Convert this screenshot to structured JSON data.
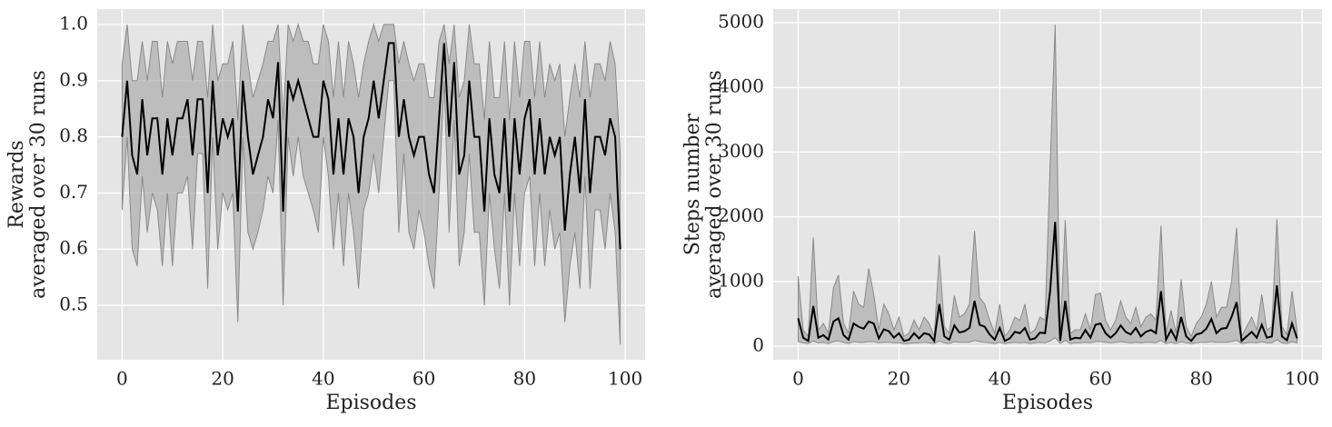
{
  "chart_data": [
    {
      "type": "line",
      "xlabel": "Episodes",
      "ylabel": [
        "Rewards",
        "averaged over 30 runs"
      ],
      "xlim": [
        -4.95,
        103.95
      ],
      "ylim": [
        0.403,
        1.0275
      ],
      "xticks": [
        0,
        20,
        40,
        60,
        80,
        100
      ],
      "yticks": [
        0.5,
        0.6,
        0.7,
        0.8,
        0.9,
        {
          "value": 1,
          "label": "1.0"
        }
      ],
      "grid": true,
      "band_color": "#a8a8a8",
      "x": [
        0,
        1,
        2,
        3,
        4,
        5,
        6,
        7,
        8,
        9,
        10,
        11,
        12,
        13,
        14,
        15,
        16,
        17,
        18,
        19,
        20,
        21,
        22,
        23,
        24,
        25,
        26,
        27,
        28,
        29,
        30,
        31,
        32,
        33,
        34,
        35,
        36,
        37,
        38,
        39,
        40,
        41,
        42,
        43,
        44,
        45,
        46,
        47,
        48,
        49,
        50,
        51,
        52,
        53,
        54,
        55,
        56,
        57,
        58,
        59,
        60,
        61,
        62,
        63,
        64,
        65,
        66,
        67,
        68,
        69,
        70,
        71,
        72,
        73,
        74,
        75,
        76,
        77,
        78,
        79,
        80,
        81,
        82,
        83,
        84,
        85,
        86,
        87,
        88,
        89,
        90,
        91,
        92,
        93,
        94,
        95,
        96,
        97,
        98,
        99
      ],
      "series": [
        {
          "color": "#000000",
          "values": [
            0.8,
            0.9,
            0.767,
            0.733,
            0.867,
            0.767,
            0.833,
            0.833,
            0.733,
            0.833,
            0.767,
            0.833,
            0.833,
            0.867,
            0.767,
            0.867,
            0.867,
            0.7,
            0.9,
            0.767,
            0.833,
            0.8,
            0.833,
            0.667,
            0.9,
            0.8,
            0.733,
            0.767,
            0.8,
            0.867,
            0.833,
            0.933,
            0.667,
            0.9,
            0.867,
            0.9,
            0.867,
            0.833,
            0.8,
            0.8,
            0.9,
            0.867,
            0.733,
            0.833,
            0.733,
            0.833,
            0.8,
            0.7,
            0.8,
            0.833,
            0.9,
            0.833,
            0.9,
            0.967,
            0.967,
            0.8,
            0.867,
            0.8,
            0.767,
            0.8,
            0.8,
            0.733,
            0.7,
            0.833,
            0.967,
            0.8,
            0.933,
            0.733,
            0.767,
            0.9,
            0.8,
            0.8,
            0.667,
            0.833,
            0.733,
            0.7,
            0.833,
            0.667,
            0.833,
            0.733,
            0.833,
            0.867,
            0.733,
            0.833,
            0.733,
            0.8,
            0.767,
            0.8,
            0.633,
            0.733,
            0.8,
            0.7,
            0.867,
            0.7,
            0.8,
            0.8,
            0.767,
            0.833,
            0.8,
            0.6
          ],
          "upper": [
            0.93,
            1.0,
            0.9,
            0.9,
            0.97,
            0.9,
            0.97,
            0.97,
            0.87,
            0.97,
            0.93,
            0.97,
            0.97,
            0.97,
            0.9,
            0.97,
            0.97,
            0.87,
            1.0,
            0.9,
            0.93,
            0.93,
            0.97,
            0.83,
            1.0,
            0.93,
            0.87,
            0.9,
            0.93,
            0.97,
            0.97,
            1.0,
            0.83,
            1.0,
            0.97,
            1.0,
            0.97,
            0.97,
            0.93,
            0.93,
            1.0,
            0.97,
            0.87,
            0.97,
            0.87,
            0.97,
            0.93,
            0.87,
            0.93,
            0.97,
            1.0,
            0.97,
            1.0,
            1.0,
            1.0,
            0.93,
            0.97,
            0.93,
            0.9,
            0.93,
            0.93,
            0.87,
            0.87,
            0.97,
            1.0,
            0.93,
            1.0,
            0.87,
            0.9,
            1.0,
            0.93,
            0.93,
            0.83,
            0.97,
            0.87,
            0.87,
            0.97,
            0.83,
            0.97,
            0.87,
            0.97,
            0.97,
            0.87,
            0.97,
            0.87,
            0.93,
            0.9,
            0.93,
            0.8,
            0.87,
            0.93,
            0.87,
            0.97,
            0.87,
            0.93,
            0.93,
            0.9,
            0.97,
            0.93,
            0.77
          ],
          "lower": [
            0.67,
            0.8,
            0.6,
            0.57,
            0.73,
            0.63,
            0.7,
            0.67,
            0.57,
            0.7,
            0.57,
            0.7,
            0.7,
            0.73,
            0.6,
            0.77,
            0.77,
            0.53,
            0.8,
            0.6,
            0.7,
            0.67,
            0.7,
            0.47,
            0.8,
            0.63,
            0.6,
            0.63,
            0.67,
            0.73,
            0.7,
            0.83,
            0.5,
            0.8,
            0.73,
            0.8,
            0.73,
            0.7,
            0.67,
            0.63,
            0.8,
            0.73,
            0.6,
            0.7,
            0.57,
            0.7,
            0.63,
            0.53,
            0.67,
            0.7,
            0.77,
            0.7,
            0.8,
            0.9,
            0.9,
            0.63,
            0.77,
            0.63,
            0.6,
            0.67,
            0.63,
            0.57,
            0.53,
            0.7,
            0.9,
            0.63,
            0.83,
            0.57,
            0.63,
            0.77,
            0.63,
            0.63,
            0.5,
            0.7,
            0.6,
            0.53,
            0.7,
            0.5,
            0.7,
            0.57,
            0.7,
            0.73,
            0.57,
            0.7,
            0.57,
            0.67,
            0.6,
            0.63,
            0.47,
            0.57,
            0.63,
            0.53,
            0.73,
            0.53,
            0.67,
            0.67,
            0.6,
            0.7,
            0.63,
            0.43
          ]
        }
      ]
    },
    {
      "type": "line",
      "xlabel": "Episodes",
      "ylabel": [
        "Steps number",
        "averaged over 30 runs"
      ],
      "xlim": [
        -4.95,
        103.95
      ],
      "ylim": [
        -211,
        5211
      ],
      "xticks": [
        0,
        20,
        40,
        60,
        80,
        100
      ],
      "yticks": [
        0,
        1000,
        2000,
        3000,
        4000,
        5000
      ],
      "grid": true,
      "band_color": "#a8a8a8",
      "x": [
        0,
        1,
        2,
        3,
        4,
        5,
        6,
        7,
        8,
        9,
        10,
        11,
        12,
        13,
        14,
        15,
        16,
        17,
        18,
        19,
        20,
        21,
        22,
        23,
        24,
        25,
        26,
        27,
        28,
        29,
        30,
        31,
        32,
        33,
        34,
        35,
        36,
        37,
        38,
        39,
        40,
        41,
        42,
        43,
        44,
        45,
        46,
        47,
        48,
        49,
        50,
        51,
        52,
        53,
        54,
        55,
        56,
        57,
        58,
        59,
        60,
        61,
        62,
        63,
        64,
        65,
        66,
        67,
        68,
        69,
        70,
        71,
        72,
        73,
        74,
        75,
        76,
        77,
        78,
        79,
        80,
        81,
        82,
        83,
        84,
        85,
        86,
        87,
        88,
        89,
        90,
        91,
        92,
        93,
        94,
        95,
        96,
        97,
        98,
        99
      ],
      "series": [
        {
          "color": "#000000",
          "values": [
            430,
            130,
            80,
            620,
            130,
            170,
            100,
            380,
            430,
            170,
            100,
            350,
            300,
            270,
            380,
            350,
            120,
            260,
            230,
            130,
            200,
            80,
            100,
            200,
            120,
            200,
            180,
            80,
            650,
            150,
            100,
            320,
            210,
            230,
            280,
            700,
            330,
            300,
            180,
            100,
            280,
            80,
            120,
            220,
            200,
            280,
            100,
            120,
            210,
            200,
            850,
            1920,
            80,
            700,
            100,
            130,
            120,
            250,
            130,
            330,
            350,
            200,
            130,
            200,
            320,
            220,
            180,
            280,
            150,
            220,
            250,
            200,
            850,
            100,
            250,
            100,
            450,
            150,
            80,
            180,
            200,
            270,
            420,
            200,
            270,
            280,
            450,
            680,
            80,
            150,
            220,
            130,
            330,
            130,
            150,
            940,
            150,
            90,
            350,
            120
          ],
          "upper": [
            1080,
            250,
            150,
            1680,
            250,
            350,
            200,
            900,
            1100,
            350,
            200,
            850,
            650,
            600,
            1200,
            800,
            250,
            650,
            500,
            250,
            450,
            150,
            200,
            400,
            250,
            450,
            350,
            150,
            1400,
            300,
            200,
            780,
            450,
            500,
            650,
            1780,
            750,
            650,
            400,
            200,
            650,
            150,
            250,
            450,
            400,
            650,
            200,
            250,
            450,
            400,
            2800,
            4970,
            150,
            1950,
            200,
            250,
            250,
            500,
            250,
            800,
            820,
            400,
            250,
            400,
            700,
            450,
            350,
            600,
            300,
            450,
            500,
            400,
            1860,
            200,
            550,
            200,
            1030,
            300,
            150,
            350,
            450,
            650,
            1000,
            450,
            600,
            600,
            1000,
            1830,
            150,
            300,
            450,
            250,
            800,
            250,
            300,
            1960,
            300,
            180,
            850,
            250
          ],
          "lower": [
            70,
            50,
            40,
            80,
            50,
            60,
            40,
            70,
            80,
            60,
            40,
            70,
            60,
            60,
            70,
            70,
            50,
            60,
            60,
            50,
            50,
            40,
            40,
            50,
            50,
            60,
            50,
            40,
            80,
            50,
            40,
            70,
            60,
            60,
            60,
            90,
            70,
            60,
            50,
            40,
            60,
            40,
            50,
            60,
            50,
            60,
            40,
            50,
            60,
            50,
            80,
            130,
            40,
            90,
            40,
            50,
            50,
            60,
            50,
            70,
            70,
            60,
            50,
            60,
            70,
            60,
            50,
            60,
            50,
            60,
            60,
            50,
            90,
            40,
            60,
            40,
            70,
            50,
            40,
            50,
            60,
            60,
            70,
            60,
            60,
            60,
            70,
            90,
            40,
            50,
            60,
            50,
            70,
            50,
            50,
            100,
            50,
            40,
            70,
            50
          ]
        }
      ]
    }
  ]
}
